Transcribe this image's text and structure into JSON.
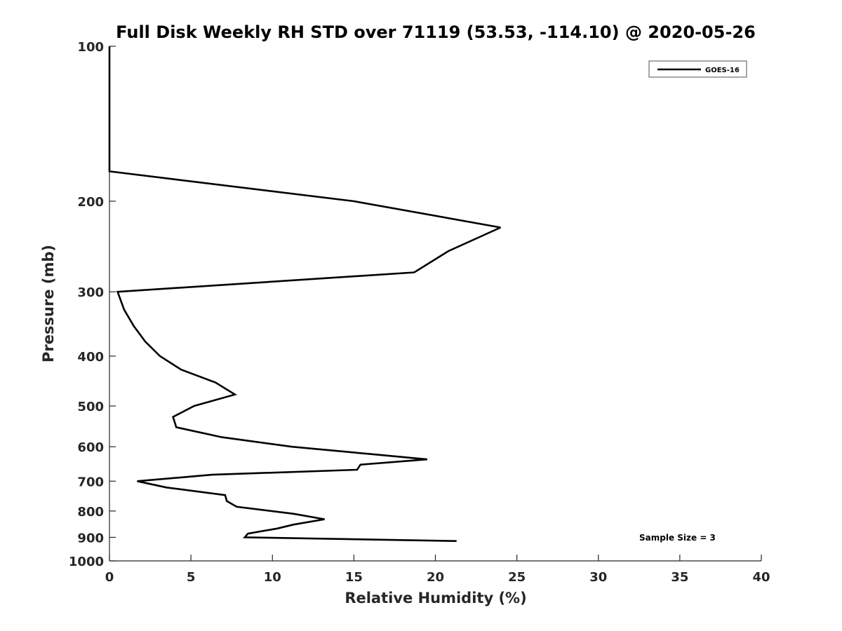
{
  "chart_data": {
    "type": "line",
    "title": "Full Disk Weekly RH STD over 71119 (53.53, -114.10) @ 2020-05-26",
    "xlabel": "Relative Humidity (%)",
    "ylabel": "Pressure (mb)",
    "xlim": [
      0,
      40
    ],
    "ylim": [
      100,
      1000
    ],
    "yscale": "log",
    "xticks": [
      0,
      5,
      10,
      15,
      20,
      25,
      30,
      35,
      40
    ],
    "yticks": [
      100,
      200,
      300,
      400,
      500,
      600,
      700,
      800,
      900,
      1000
    ],
    "grid": false,
    "legend_position": "top-right",
    "series": [
      {
        "name": "GOES-16",
        "color": "#000000",
        "points": [
          [
            0.0,
            100
          ],
          [
            0.0,
            125
          ],
          [
            0.0,
            150
          ],
          [
            0.0,
            175
          ],
          [
            15.0,
            200
          ],
          [
            24.0,
            225
          ],
          [
            20.8,
            250
          ],
          [
            18.7,
            275
          ],
          [
            0.5,
            300
          ],
          [
            0.9,
            325
          ],
          [
            1.5,
            350
          ],
          [
            2.2,
            375
          ],
          [
            3.1,
            400
          ],
          [
            4.4,
            425
          ],
          [
            6.5,
            450
          ],
          [
            7.7,
            475
          ],
          [
            5.2,
            500
          ],
          [
            3.9,
            525
          ],
          [
            4.1,
            550
          ],
          [
            6.9,
            575
          ],
          [
            11.2,
            600
          ],
          [
            16.0,
            620
          ],
          [
            19.5,
            635
          ],
          [
            15.4,
            650
          ],
          [
            15.2,
            665
          ],
          [
            6.3,
            680
          ],
          [
            1.7,
            700
          ],
          [
            3.5,
            720
          ],
          [
            7.1,
            745
          ],
          [
            7.2,
            765
          ],
          [
            7.8,
            785
          ],
          [
            11.3,
            810
          ],
          [
            13.2,
            830
          ],
          [
            11.3,
            850
          ],
          [
            10.3,
            865
          ],
          [
            8.5,
            885
          ],
          [
            8.3,
            900
          ],
          [
            21.3,
            915
          ]
        ]
      }
    ],
    "annotation": "Sample Size = 3"
  }
}
